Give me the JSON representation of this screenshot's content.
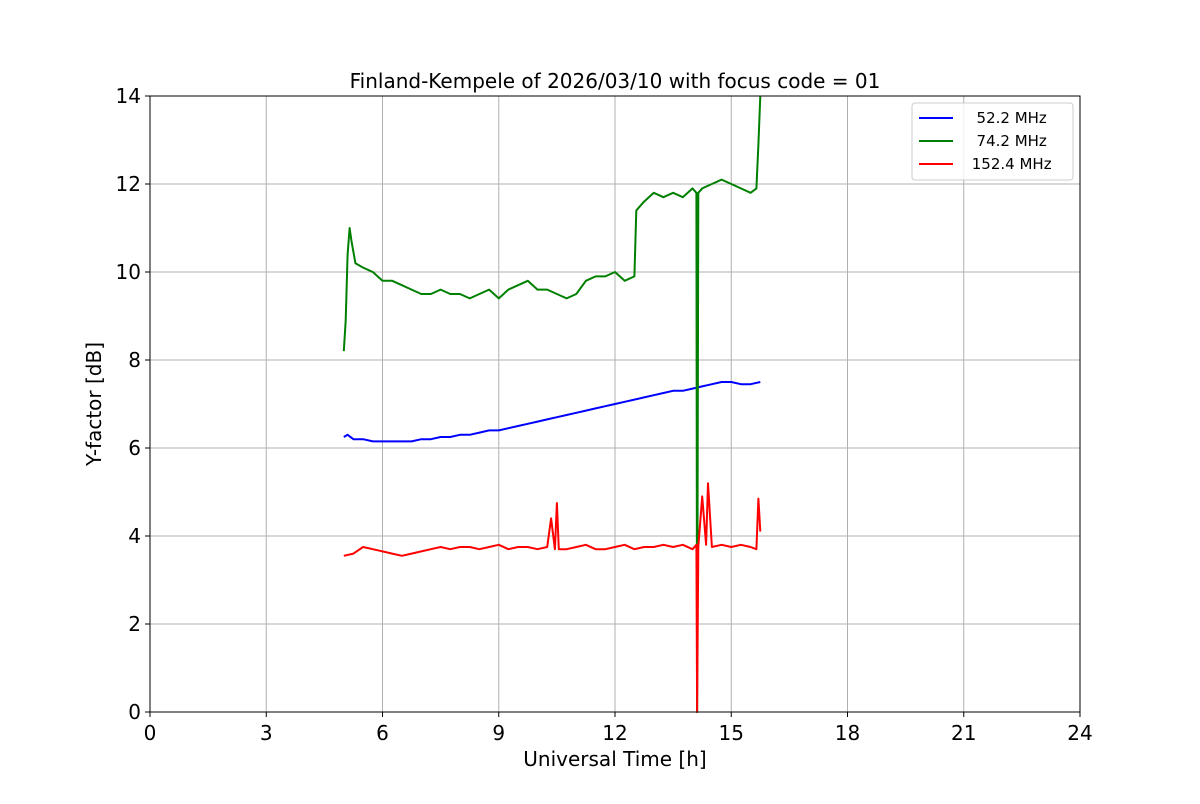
{
  "chart_data": {
    "type": "line",
    "title": "Finland-Kempele of 2026/03/10 with focus code = 01",
    "xlabel": "Universal Time [h]",
    "ylabel": "Y-factor [dB]",
    "xlim": [
      0,
      24
    ],
    "ylim": [
      0,
      14
    ],
    "xticks": [
      0,
      3,
      6,
      9,
      12,
      15,
      18,
      21,
      24
    ],
    "yticks": [
      0,
      2,
      4,
      6,
      8,
      10,
      12,
      14
    ],
    "grid": true,
    "legend_position": "top-right",
    "series": [
      {
        "name": "  52.2 MHz",
        "color": "#0000ff",
        "x": [
          5.0,
          5.1,
          5.25,
          5.5,
          5.75,
          6.0,
          6.25,
          6.5,
          6.75,
          7.0,
          7.25,
          7.5,
          7.75,
          8.0,
          8.25,
          8.5,
          8.75,
          9.0,
          9.25,
          9.5,
          9.75,
          10.0,
          10.25,
          10.5,
          10.75,
          11.0,
          11.25,
          11.5,
          11.75,
          12.0,
          12.25,
          12.5,
          12.75,
          13.0,
          13.25,
          13.5,
          13.75,
          14.0,
          14.25,
          14.5,
          14.75,
          15.0,
          15.25,
          15.5,
          15.75
        ],
        "y": [
          6.25,
          6.3,
          6.2,
          6.2,
          6.15,
          6.15,
          6.15,
          6.15,
          6.15,
          6.2,
          6.2,
          6.25,
          6.25,
          6.3,
          6.3,
          6.35,
          6.4,
          6.4,
          6.45,
          6.5,
          6.55,
          6.6,
          6.65,
          6.7,
          6.75,
          6.8,
          6.85,
          6.9,
          6.95,
          7.0,
          7.05,
          7.1,
          7.15,
          7.2,
          7.25,
          7.3,
          7.3,
          7.35,
          7.4,
          7.45,
          7.5,
          7.5,
          7.45,
          7.45,
          7.5
        ]
      },
      {
        "name": "  74.2 MHz",
        "color": "#008000",
        "x": [
          5.0,
          5.05,
          5.1,
          5.15,
          5.2,
          5.3,
          5.5,
          5.75,
          6.0,
          6.25,
          6.5,
          6.75,
          7.0,
          7.25,
          7.5,
          7.75,
          8.0,
          8.25,
          8.5,
          8.75,
          9.0,
          9.25,
          9.5,
          9.75,
          10.0,
          10.25,
          10.5,
          10.75,
          11.0,
          11.25,
          11.5,
          11.75,
          12.0,
          12.25,
          12.5,
          12.55,
          12.75,
          13.0,
          13.25,
          13.5,
          13.75,
          14.0,
          14.1,
          14.12,
          14.15,
          14.25,
          14.5,
          14.75,
          15.0,
          15.25,
          15.5,
          15.65,
          15.7,
          15.75
        ],
        "y": [
          8.2,
          8.9,
          10.4,
          11.0,
          10.7,
          10.2,
          10.1,
          10.0,
          9.8,
          9.8,
          9.7,
          9.6,
          9.5,
          9.5,
          9.6,
          9.5,
          9.5,
          9.4,
          9.5,
          9.6,
          9.4,
          9.6,
          9.7,
          9.8,
          9.6,
          9.6,
          9.5,
          9.4,
          9.5,
          9.8,
          9.9,
          9.9,
          10.0,
          9.8,
          9.9,
          11.4,
          11.6,
          11.8,
          11.7,
          11.8,
          11.7,
          11.9,
          11.8,
          0.0,
          11.8,
          11.9,
          12.0,
          12.1,
          12.0,
          11.9,
          11.8,
          11.9,
          12.9,
          14.0
        ]
      },
      {
        "name": " 152.4 MHz",
        "color": "#ff0000",
        "x": [
          5.0,
          5.25,
          5.5,
          5.75,
          6.0,
          6.25,
          6.5,
          6.75,
          7.0,
          7.25,
          7.5,
          7.75,
          8.0,
          8.25,
          8.5,
          8.75,
          9.0,
          9.25,
          9.5,
          9.75,
          10.0,
          10.25,
          10.35,
          10.45,
          10.5,
          10.55,
          10.75,
          11.0,
          11.25,
          11.5,
          11.75,
          12.0,
          12.25,
          12.5,
          12.75,
          13.0,
          13.25,
          13.5,
          13.75,
          14.0,
          14.1,
          14.12,
          14.15,
          14.25,
          14.35,
          14.4,
          14.5,
          14.75,
          15.0,
          15.25,
          15.5,
          15.65,
          15.7,
          15.75
        ],
        "y": [
          3.55,
          3.6,
          3.75,
          3.7,
          3.65,
          3.6,
          3.55,
          3.6,
          3.65,
          3.7,
          3.75,
          3.7,
          3.75,
          3.75,
          3.7,
          3.75,
          3.8,
          3.7,
          3.75,
          3.75,
          3.7,
          3.75,
          4.4,
          3.7,
          4.75,
          3.7,
          3.7,
          3.75,
          3.8,
          3.7,
          3.7,
          3.75,
          3.8,
          3.7,
          3.75,
          3.75,
          3.8,
          3.75,
          3.8,
          3.7,
          3.8,
          0.0,
          3.75,
          4.9,
          3.8,
          5.2,
          3.75,
          3.8,
          3.75,
          3.8,
          3.75,
          3.7,
          4.85,
          4.1
        ]
      }
    ]
  }
}
